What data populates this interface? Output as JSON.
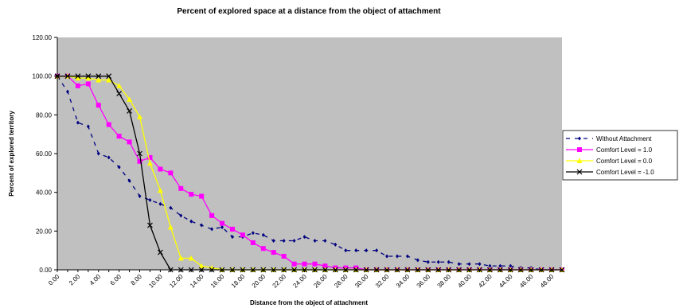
{
  "chart_data": {
    "type": "line",
    "title": "Percent of explored space at a distance from the object of attachment",
    "xlabel": "Distance from the object of attachment",
    "ylabel": "Percent of explored territory",
    "x": [
      0,
      1,
      2,
      3,
      4,
      5,
      6,
      7,
      8,
      9,
      10,
      11,
      12,
      13,
      14,
      15,
      16,
      17,
      18,
      19,
      20,
      21,
      22,
      23,
      24,
      25,
      26,
      27,
      28,
      29,
      30,
      31,
      32,
      33,
      34,
      35,
      36,
      37,
      38,
      39,
      40,
      41,
      42,
      43,
      44,
      45,
      46,
      47,
      48,
      49
    ],
    "xlim": [
      0,
      49
    ],
    "ylim": [
      0,
      120
    ],
    "yticks": [
      "0.00",
      "20.00",
      "40.00",
      "60.00",
      "80.00",
      "100.00",
      "120.00"
    ],
    "xticks": [
      "0.00",
      "2.00",
      "4.00",
      "6.00",
      "8.00",
      "10.00",
      "12.00",
      "14.00",
      "16.00",
      "18.00",
      "20.00",
      "22.00",
      "24.00",
      "26.00",
      "28.00",
      "30.00",
      "32.00",
      "34.00",
      "36.00",
      "38.00",
      "40.00",
      "42.00",
      "44.00",
      "46.00",
      "48.00"
    ],
    "plot_background": "#c0c0c0",
    "grid": false,
    "legend_position": "right",
    "series": [
      {
        "name": "Without Attachment",
        "color": "#000080",
        "marker": "diamond",
        "line": "dash",
        "values": [
          100,
          92,
          76,
          74,
          60,
          58,
          53,
          46,
          38,
          36,
          34,
          32,
          28,
          25,
          23,
          21,
          22,
          17,
          17,
          19,
          18,
          15,
          15,
          15,
          17,
          15,
          15,
          13,
          10,
          10,
          10,
          10,
          7,
          7,
          7,
          5,
          4,
          4,
          4,
          3,
          3,
          3,
          2,
          2,
          2,
          1,
          1,
          0,
          0,
          0
        ]
      },
      {
        "name": "Comfort Level = 1.0",
        "color": "#ff00ff",
        "marker": "square",
        "line": "solid",
        "values": [
          100,
          100,
          95,
          96,
          85,
          75,
          69,
          66,
          56,
          58,
          52,
          50,
          42,
          39,
          38,
          28,
          24,
          21,
          18,
          14,
          11,
          9,
          7,
          3,
          3,
          3,
          2,
          1,
          1,
          1,
          0,
          0,
          0,
          0,
          0,
          0,
          0,
          0,
          0,
          0,
          0,
          0,
          0,
          0,
          0,
          0,
          0,
          0,
          0,
          0
        ]
      },
      {
        "name": "Comfort Level = 0.0",
        "color": "#ffff00",
        "marker": "triangle",
        "line": "solid",
        "values": [
          100,
          100,
          99,
          99,
          98,
          98,
          95,
          88,
          79,
          55,
          41,
          22,
          6,
          6,
          2,
          1,
          0,
          0,
          0,
          0,
          0,
          0,
          0,
          0,
          0,
          0,
          0,
          0,
          0,
          0,
          0,
          0,
          0,
          0,
          0,
          0,
          0,
          0,
          0,
          0,
          0,
          0,
          0,
          0,
          0,
          0,
          0,
          0,
          0,
          0
        ]
      },
      {
        "name": "Comfort Level = -1.0",
        "color": "#000000",
        "marker": "x",
        "line": "solid",
        "values": [
          100,
          100,
          100,
          100,
          100,
          100,
          91,
          82,
          60,
          23,
          9,
          0,
          0,
          0,
          0,
          0,
          0,
          0,
          0,
          0,
          0,
          0,
          0,
          0,
          0,
          0,
          0,
          0,
          0,
          0,
          0,
          0,
          0,
          0,
          0,
          0,
          0,
          0,
          0,
          0,
          0,
          0,
          0,
          0,
          0,
          0,
          0,
          0,
          0,
          0
        ]
      }
    ]
  }
}
